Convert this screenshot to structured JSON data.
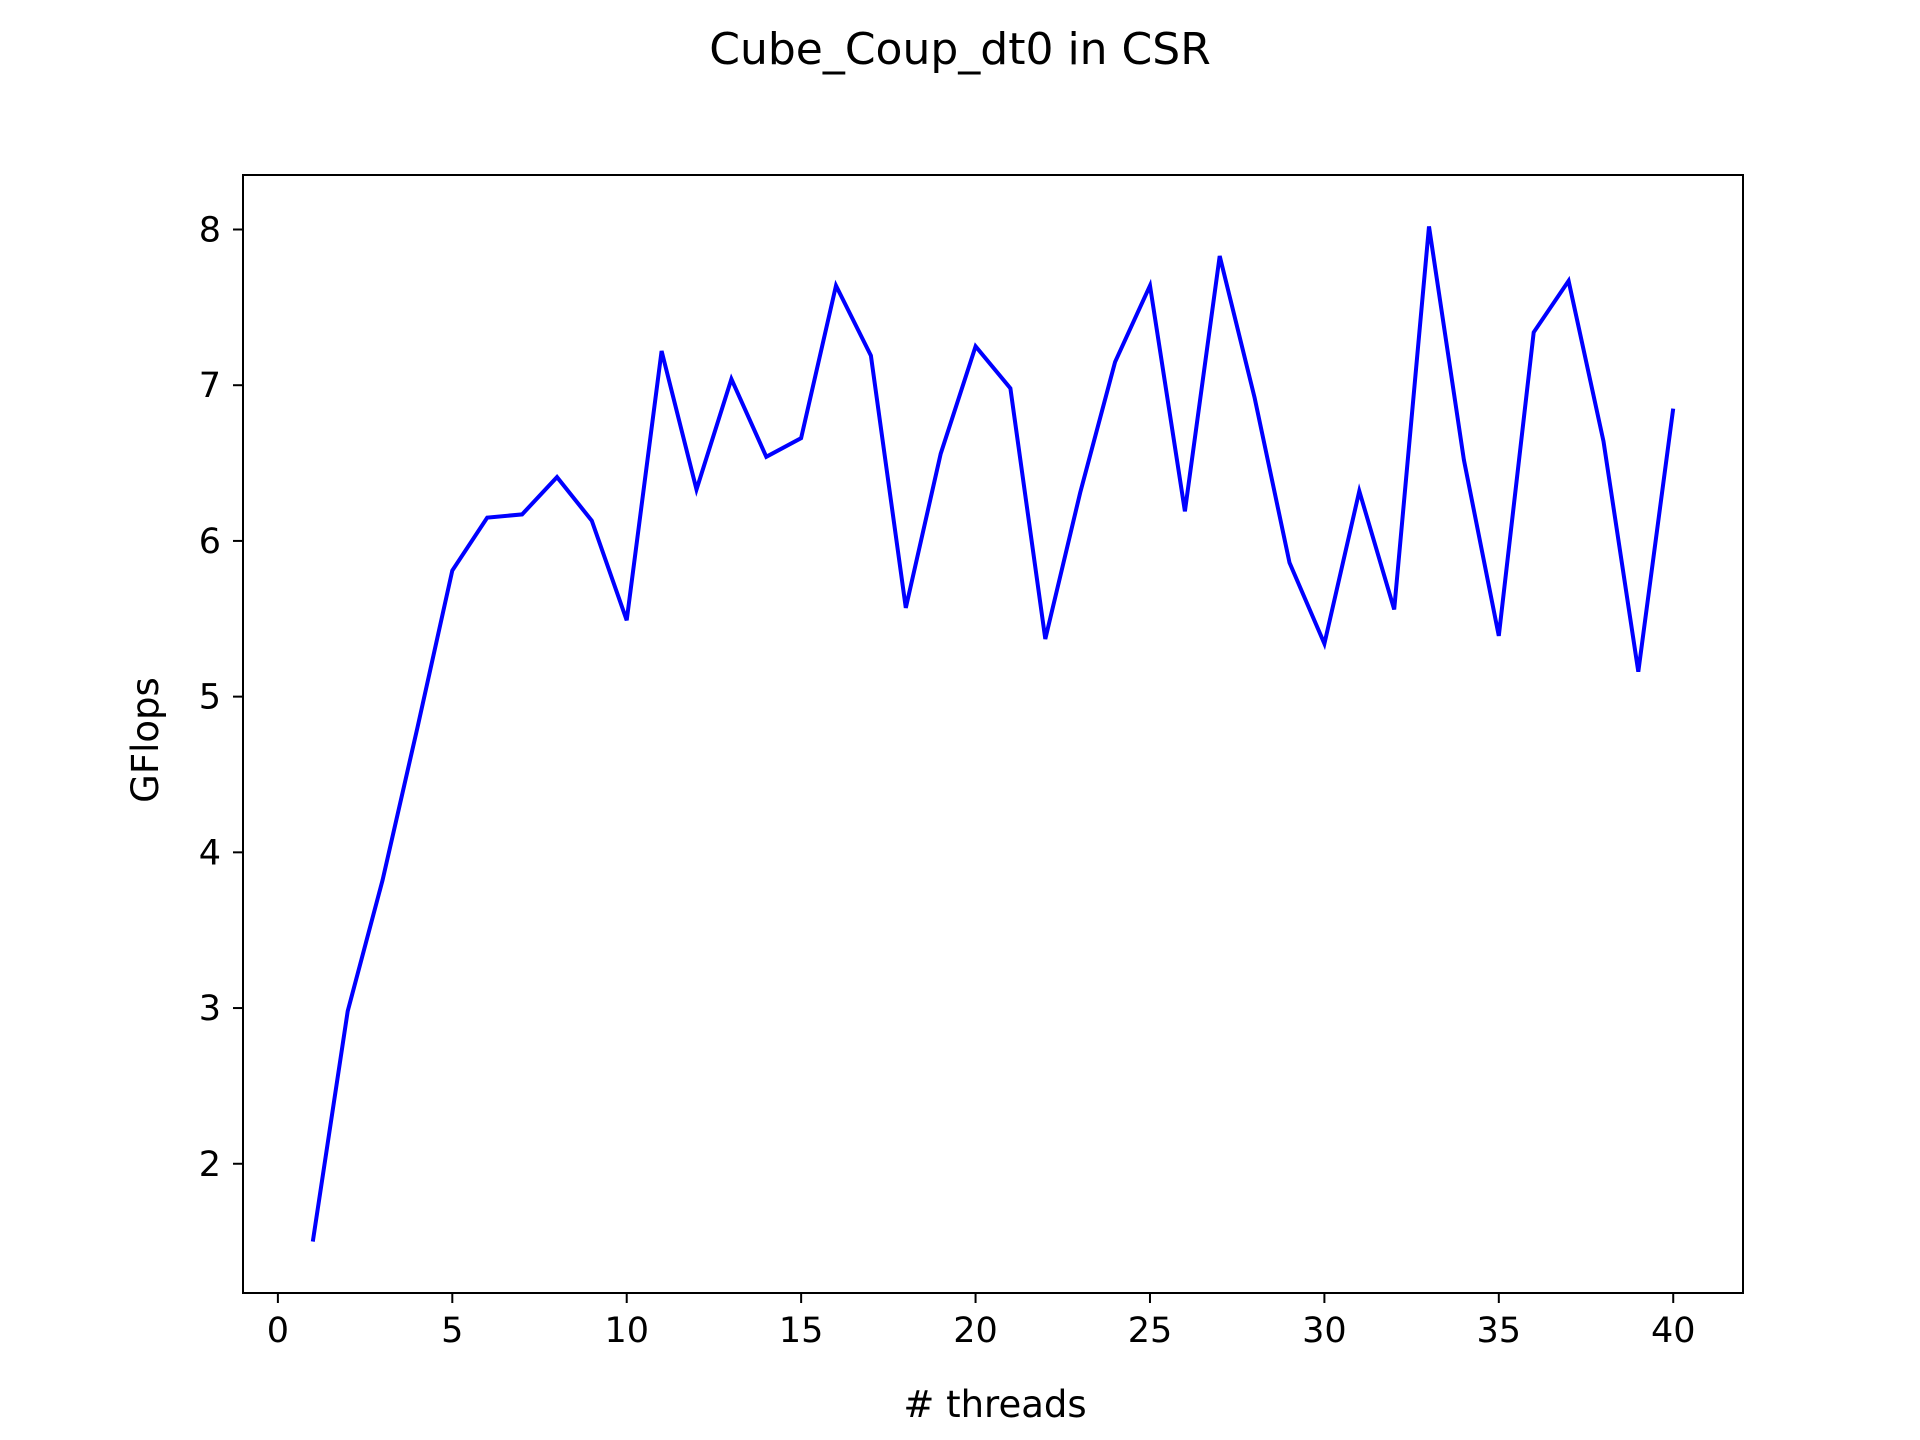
{
  "chart_data": {
    "type": "line",
    "title": "Cube_Coup_dt0 in CSR",
    "xlabel": "# threads",
    "ylabel": "GFlops",
    "xlim": [
      -1,
      42
    ],
    "ylim": [
      1.17,
      8.35
    ],
    "xticks": [
      0,
      5,
      10,
      15,
      20,
      25,
      30,
      35,
      40
    ],
    "yticks": [
      2,
      3,
      4,
      5,
      6,
      7,
      8
    ],
    "grid": false,
    "legend": "none",
    "series": [
      {
        "color": "#0000ff",
        "x": [
          1,
          2,
          3,
          4,
          5,
          6,
          7,
          8,
          9,
          10,
          11,
          12,
          13,
          14,
          15,
          16,
          17,
          18,
          19,
          20,
          21,
          22,
          23,
          24,
          25,
          26,
          27,
          28,
          29,
          30,
          31,
          32,
          33,
          34,
          35,
          36,
          37,
          38,
          39,
          40
        ],
        "values": [
          1.5,
          2.98,
          3.82,
          4.8,
          5.81,
          6.15,
          6.17,
          6.41,
          6.13,
          5.49,
          7.22,
          6.33,
          7.04,
          6.54,
          6.66,
          7.64,
          7.19,
          5.57,
          6.56,
          7.25,
          6.98,
          5.37,
          6.31,
          7.15,
          7.64,
          6.19,
          7.83,
          6.92,
          5.86,
          5.34,
          6.32,
          5.56,
          8.02,
          6.52,
          5.39,
          7.34,
          7.67,
          6.64,
          5.16,
          6.85
        ]
      }
    ]
  }
}
